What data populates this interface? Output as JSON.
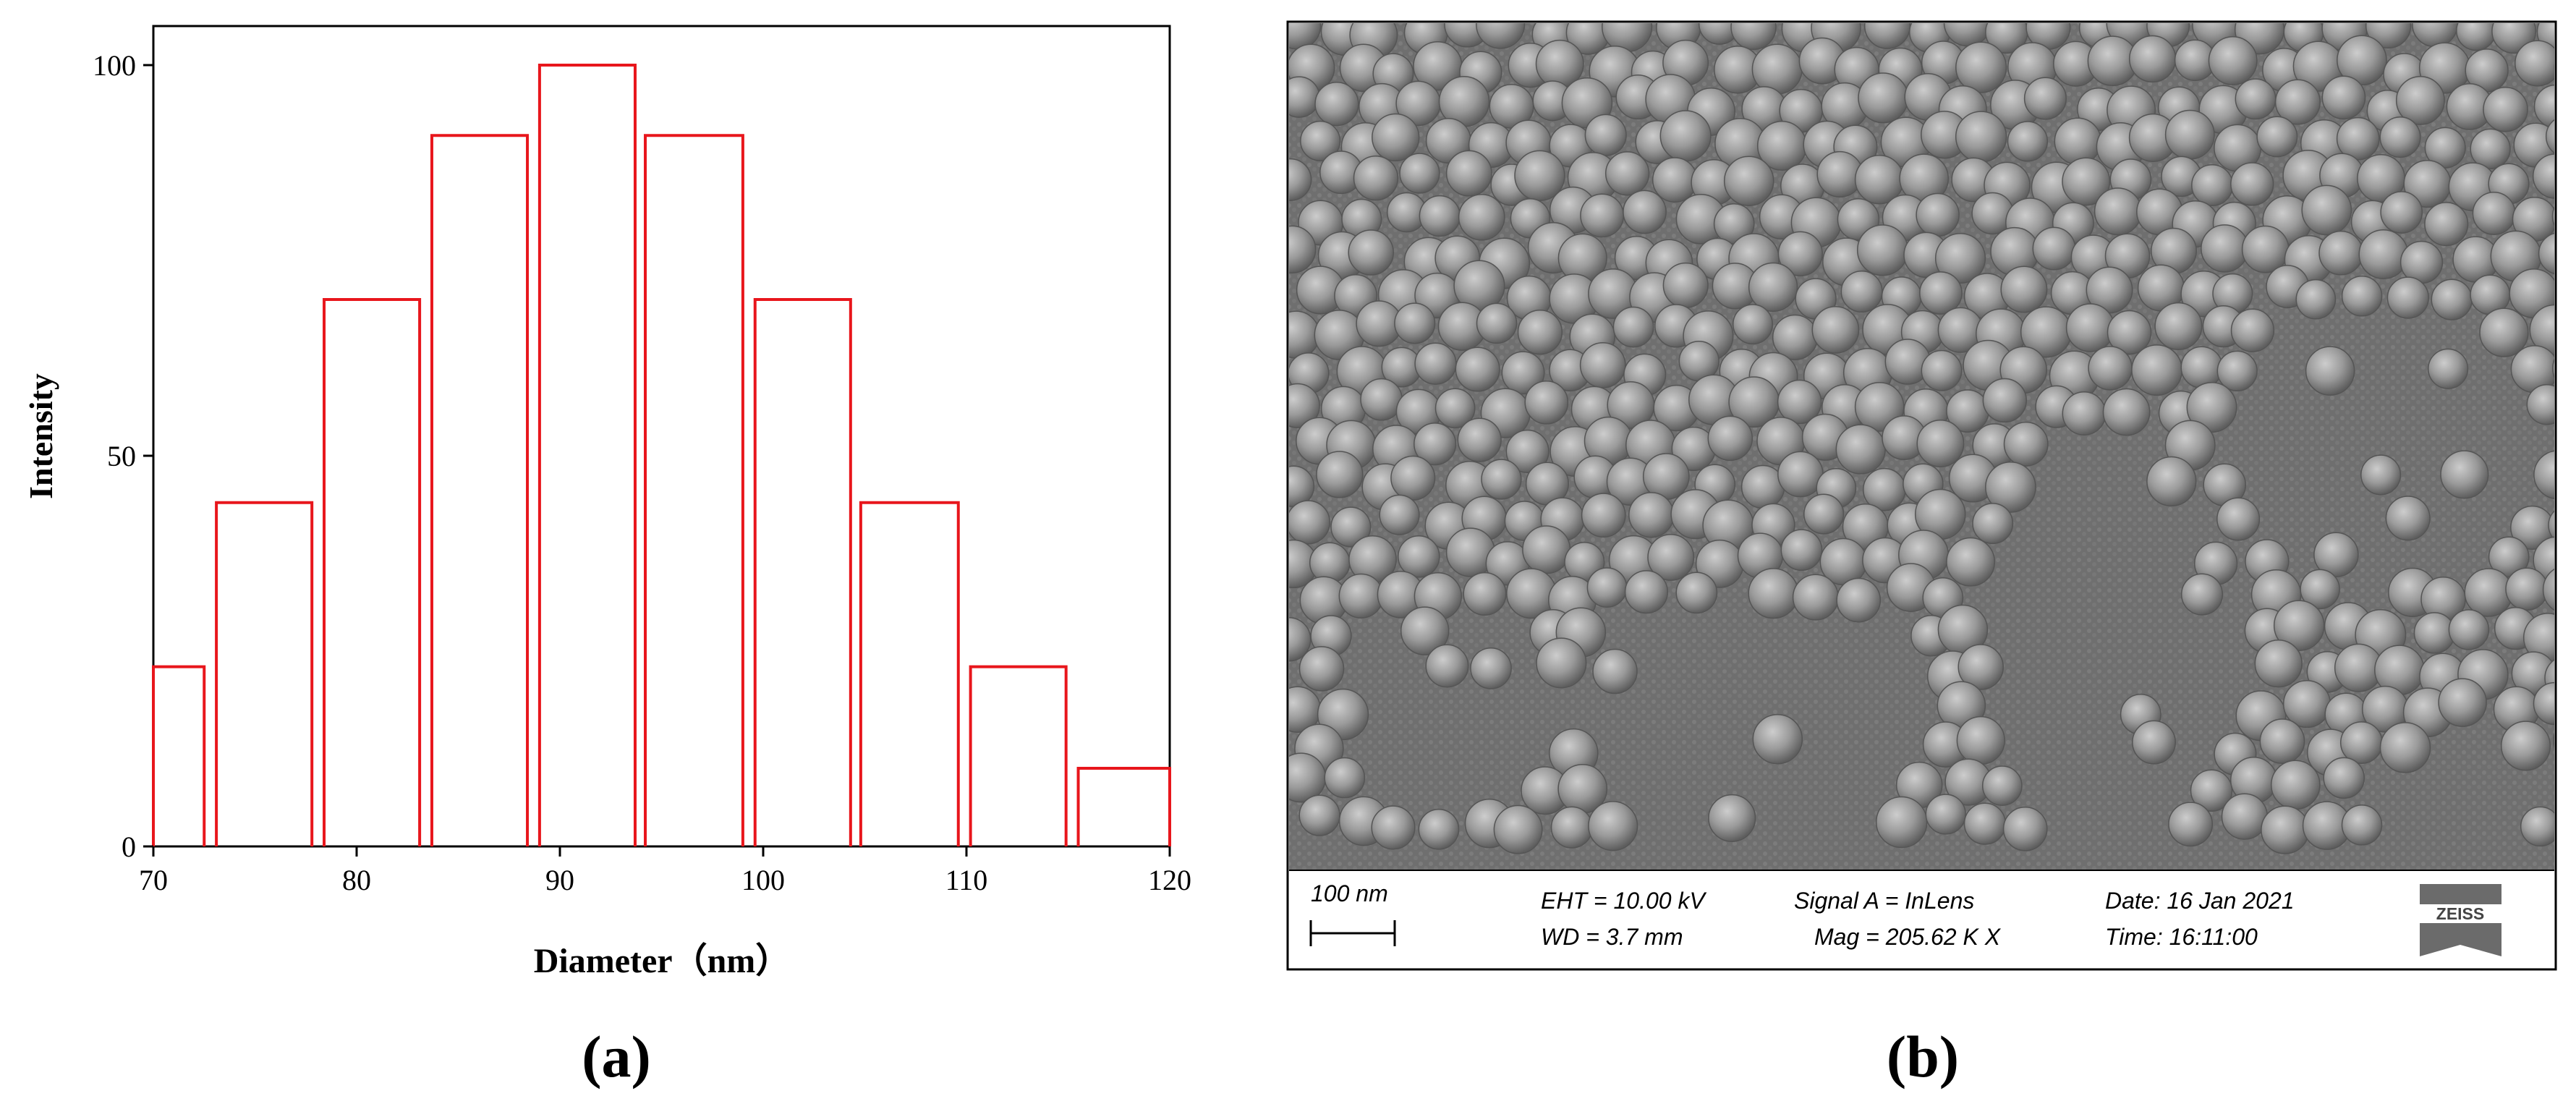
{
  "panel_a_label": "(a)",
  "panel_b_label": "(b)",
  "chart_data": {
    "type": "bar",
    "title": "",
    "xlabel": "Diameter（nm）",
    "ylabel": "Intensity",
    "xlim": [
      70,
      120
    ],
    "ylim": [
      0,
      105
    ],
    "x_ticks": [
      70,
      80,
      90,
      100,
      110,
      120
    ],
    "y_ticks": [
      0,
      50,
      100
    ],
    "bar_color": "#e8161c",
    "bars": [
      {
        "x_start": 70.0,
        "x_end": 72.5,
        "value": 23
      },
      {
        "x_start": 73.1,
        "x_end": 77.8,
        "value": 44
      },
      {
        "x_start": 78.4,
        "x_end": 83.1,
        "value": 70
      },
      {
        "x_start": 83.7,
        "x_end": 88.4,
        "value": 91
      },
      {
        "x_start": 89.0,
        "x_end": 93.7,
        "value": 100
      },
      {
        "x_start": 94.2,
        "x_end": 99.0,
        "value": 91
      },
      {
        "x_start": 99.6,
        "x_end": 104.3,
        "value": 70
      },
      {
        "x_start": 104.8,
        "x_end": 109.6,
        "value": 44
      },
      {
        "x_start": 110.2,
        "x_end": 114.9,
        "value": 23
      },
      {
        "x_start": 115.5,
        "x_end": 120.0,
        "value": 10
      }
    ]
  },
  "sem": {
    "scale_bar_label": "100 nm",
    "eht": "EHT = 10.00 kV",
    "wd": "WD =  3.7 mm",
    "signal": "Signal A = InLens",
    "mag": "Mag =  205.62 K X",
    "date": "Date: 16 Jan 2021",
    "time": "Time: 16:11:00",
    "logo_text": "ZEISS"
  }
}
